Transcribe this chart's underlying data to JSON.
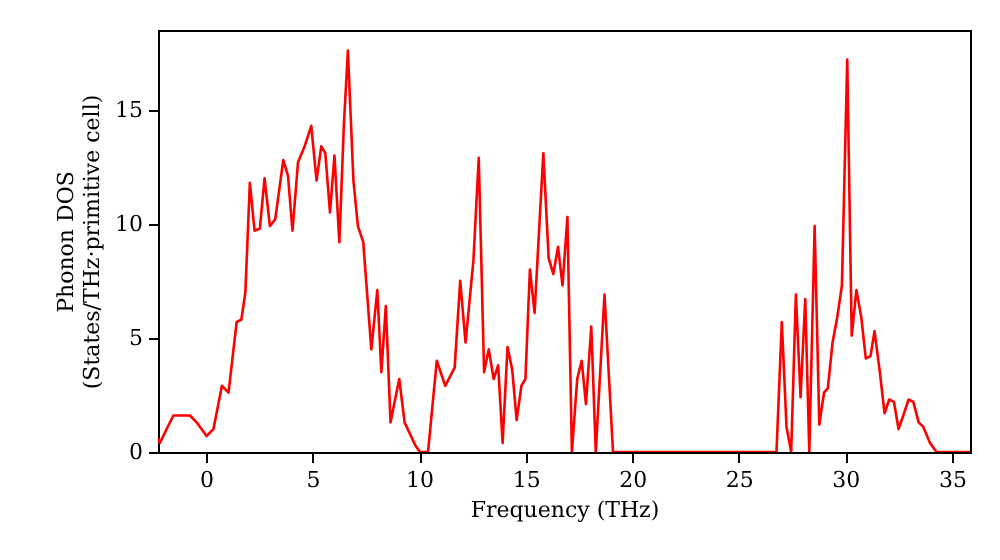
{
  "chart_data": {
    "type": "line",
    "xlabel": "Frequency (THz)",
    "ylabel": "Phonon DOS\n(States/THz·primitive cell)",
    "x": [
      -2.25,
      -2.16,
      -1.9,
      -1.53,
      -0.75,
      -0.44,
      0.03,
      0.35,
      0.75,
      1.06,
      1.44,
      1.66,
      1.85,
      2.06,
      2.28,
      2.53,
      2.75,
      3.0,
      3.25,
      3.63,
      3.85,
      4.06,
      4.32,
      4.63,
      4.94,
      5.19,
      5.41,
      5.6,
      5.82,
      6.03,
      6.26,
      6.47,
      6.66,
      6.92,
      7.13,
      7.38,
      7.76,
      8.04,
      8.23,
      8.44,
      8.66,
      9.07,
      9.32,
      9.82,
      10.04,
      10.42,
      10.83,
      11.23,
      11.67,
      11.93,
      12.18,
      12.55,
      12.8,
      13.05,
      13.27,
      13.5,
      13.71,
      13.92,
      14.15,
      14.37,
      14.58,
      14.8,
      14.99,
      15.2,
      15.42,
      15.83,
      16.08,
      16.3,
      16.52,
      16.73,
      16.96,
      17.17,
      17.42,
      17.63,
      17.83,
      18.08,
      18.29,
      18.7,
      19.1,
      26.77,
      27.02,
      27.24,
      27.46,
      27.68,
      27.9,
      28.12,
      28.31,
      28.56,
      28.78,
      29.0,
      29.18,
      29.4,
      29.62,
      29.84,
      30.09,
      30.3,
      30.52,
      30.75,
      30.96,
      31.18,
      31.37,
      31.62,
      31.84,
      32.06,
      32.28,
      32.5,
      32.72,
      32.97,
      33.19,
      33.44,
      33.66,
      33.97,
      34.28,
      35.85
    ],
    "series": [
      {
        "color": "#ff0000",
        "values": [
          0.6,
          0.4,
          0.9,
          1.6,
          1.6,
          1.3,
          0.7,
          1.0,
          2.9,
          2.6,
          5.7,
          5.8,
          7.0,
          11.8,
          9.7,
          9.8,
          12.0,
          9.9,
          10.2,
          12.8,
          12.1,
          9.7,
          12.7,
          13.4,
          14.3,
          11.9,
          13.4,
          13.1,
          10.5,
          13.0,
          9.2,
          14.3,
          17.6,
          11.9,
          9.9,
          9.2,
          4.5,
          7.1,
          3.5,
          6.4,
          1.3,
          3.2,
          1.3,
          0.3,
          0,
          0,
          4.0,
          2.9,
          3.7,
          7.5,
          4.8,
          8.4,
          12.9,
          3.5,
          4.5,
          3.2,
          3.8,
          0.4,
          4.6,
          3.6,
          1.4,
          2.9,
          3.2,
          8.0,
          6.1,
          13.1,
          8.5,
          7.8,
          9.0,
          7.3,
          10.3,
          0,
          3.2,
          4.0,
          2.1,
          5.5,
          0,
          6.9,
          0,
          0,
          5.7,
          1.1,
          0,
          6.9,
          2.4,
          6.7,
          0,
          9.9,
          1.2,
          2.6,
          2.8,
          4.8,
          5.9,
          7.3,
          17.2,
          5.1,
          7.1,
          5.9,
          4.1,
          4.2,
          5.3,
          3.5,
          1.7,
          2.3,
          2.2,
          1.0,
          1.6,
          2.3,
          2.2,
          1.3,
          1.1,
          0.4,
          0,
          0
        ]
      }
    ],
    "xlim": [
      -2.25,
      35.85
    ],
    "xticks": [
      0,
      5,
      10,
      15,
      20,
      25,
      30,
      35
    ],
    "ylim": [
      0,
      18.5
    ],
    "yticks": [
      0,
      5,
      10,
      15
    ],
    "grid": false,
    "marker": "none",
    "line_style": "solid"
  }
}
